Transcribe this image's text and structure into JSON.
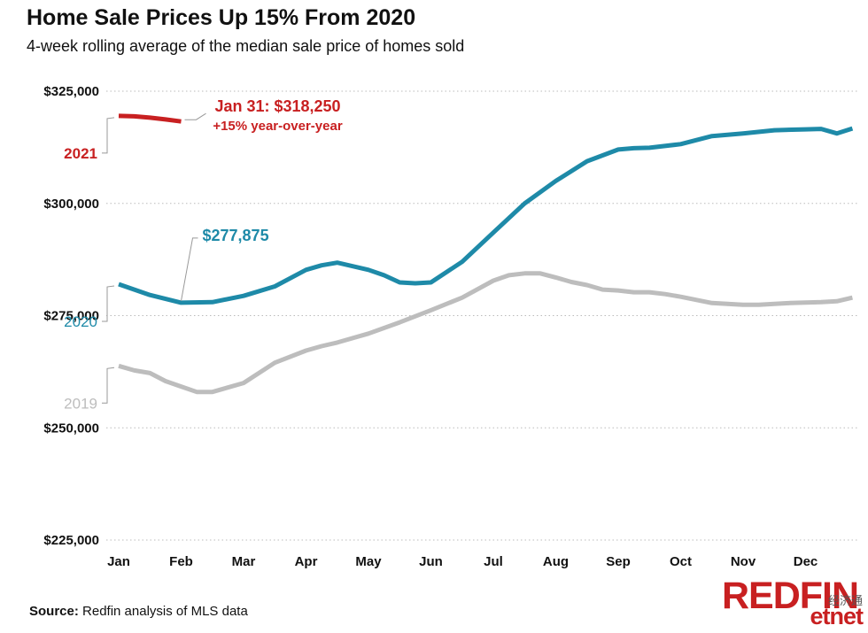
{
  "title": "Home Sale Prices Up 15% From 2020",
  "subtitle": "4-week rolling average of the median sale price of homes sold",
  "source": {
    "label": "Source:",
    "text": "Redfin analysis of MLS data"
  },
  "logo": "REDFIN",
  "watermark": {
    "cn": "经济通",
    "en": "etnet"
  },
  "chart_data": {
    "type": "line",
    "ylim": [
      225000,
      325000
    ],
    "y_ticks": [
      225000,
      250000,
      275000,
      300000,
      325000
    ],
    "y_tick_labels": [
      "$225,000",
      "$250,000",
      "$275,000",
      "$300,000",
      "$325,000"
    ],
    "x_tick_labels": [
      "Jan",
      "Feb",
      "Mar",
      "Apr",
      "May",
      "Jun",
      "Jul",
      "Aug",
      "Sep",
      "Oct",
      "Nov",
      "Dec"
    ],
    "grid": "horizontal-dotted",
    "series": [
      {
        "name": "2019",
        "color": "#bdbdbd",
        "x": [
          0,
          0.25,
          0.5,
          0.75,
          1.0,
          1.25,
          1.5,
          2.0,
          2.5,
          3.0,
          3.25,
          3.5,
          4.0,
          4.5,
          5.0,
          5.5,
          6.0,
          6.25,
          6.5,
          6.75,
          7.0,
          7.25,
          7.5,
          7.75,
          8.0,
          8.25,
          8.5,
          8.75,
          9.0,
          9.5,
          10.0,
          10.25,
          10.5,
          10.75,
          11.0,
          11.25,
          11.5,
          11.75
        ],
        "values": [
          263800,
          262800,
          262200,
          260400,
          259200,
          258000,
          258000,
          260000,
          264500,
          267200,
          268200,
          269000,
          271000,
          273500,
          276200,
          279000,
          282800,
          284000,
          284400,
          284400,
          283500,
          282500,
          281800,
          280800,
          280600,
          280200,
          280200,
          279800,
          279200,
          277800,
          277400,
          277400,
          277600,
          277800,
          277900,
          278000,
          278200,
          279000
        ]
      },
      {
        "name": "2020",
        "color": "#1e8aa8",
        "x": [
          0,
          0.5,
          1.0,
          1.5,
          2.0,
          2.5,
          3.0,
          3.25,
          3.5,
          4.0,
          4.25,
          4.5,
          4.75,
          5.0,
          5.5,
          6.0,
          6.5,
          7.0,
          7.5,
          8.0,
          8.25,
          8.5,
          9.0,
          9.5,
          10.0,
          10.5,
          11.0,
          11.25,
          11.5,
          11.75
        ],
        "values": [
          282000,
          279600,
          277875,
          278000,
          279400,
          281500,
          285200,
          286200,
          286800,
          285200,
          284000,
          282400,
          282200,
          282400,
          287000,
          293500,
          300000,
          305000,
          309400,
          312000,
          312300,
          312400,
          313200,
          315000,
          315600,
          316300,
          316500,
          316600,
          315600,
          316700
        ]
      },
      {
        "name": "2021",
        "color": "#c82021",
        "x": [
          0,
          0.25,
          0.5,
          0.75,
          1.0
        ],
        "values": [
          319500,
          319400,
          319100,
          318700,
          318250
        ]
      }
    ],
    "annotations": [
      {
        "text": "Jan 31: $318,250",
        "series": "2021"
      },
      {
        "text": "+15% year-over-year",
        "series": "2021"
      },
      {
        "text": "$277,875",
        "series": "2020"
      }
    ]
  }
}
